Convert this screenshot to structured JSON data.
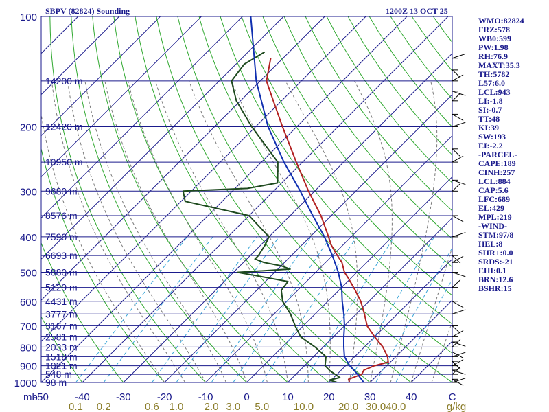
{
  "header": {
    "station": "SBPV (82824) Sounding",
    "time": "1200Z 13 OCT 25"
  },
  "indices": [
    "WMO:82824",
    "FRZ:578",
    "WB0:599",
    "PW:1.98",
    "RH:76.9",
    "MAXT:35.3",
    "TH:5782",
    "L57:6.0",
    "LCL:943",
    "LI:-1.8",
    "SI:-0.7",
    "TT:48",
    "KI:39",
    "SW:193",
    "EI:-2.2",
    "-PARCEL-",
    "CAPE:189",
    "CINH:257",
    "LCL:884",
    "CAP:5.6",
    "LFC:689",
    "EL:429",
    "MPL:219",
    "-WIND-",
    "STM:97/8",
    "HEL:8",
    "SHR+:0.0",
    "SRDS:-21",
    "EHI:0.1",
    "BRN:12.6",
    "BSHR:15"
  ],
  "colors": {
    "isobar": "#1a1a8c",
    "isotherm": "#1a1a8c",
    "dry_adiabat": "#2fa82f",
    "moist_adiabat": "#7a7a7a",
    "mixing_ratio": "#3aa6d8",
    "temperature": "#b22222",
    "dewpoint": "#1e4a1e",
    "parcel": "#1030b0",
    "labels": "#1a1a8c",
    "mixing_labels": "#8b7d2a"
  },
  "chart_data": {
    "type": "line",
    "title": "SBPV (82824) Sounding",
    "xlabel": "",
    "ylabel": "mb",
    "x_units": "C",
    "y_scale": "log",
    "ylim": [
      1000,
      100
    ],
    "xlim": [
      -50,
      50
    ],
    "pressure_ticks": [
      100,
      200,
      300,
      400,
      500,
      600,
      700,
      800,
      900,
      1000
    ],
    "temperature_ticks": [
      -50,
      -40,
      -30,
      -20,
      -10,
      0,
      10,
      20,
      30,
      40,
      50
    ],
    "temperature_tick_labels": [
      "-50",
      "-40",
      "-30",
      "-20",
      "-10",
      "0",
      "10",
      "20",
      "30",
      "40",
      "C"
    ],
    "mixing_ratio_labels": [
      "0.1",
      "0.2",
      "0.6",
      "1.0",
      "2.0",
      "3.0",
      "5.0",
      "10.0",
      "20.0",
      "30.0",
      "40.0",
      "g/kg"
    ],
    "mixing_ratio_values": [
      0.1,
      0.2,
      0.6,
      1.0,
      2.0,
      3.0,
      5.0,
      10.0,
      20.0,
      30.0,
      40.0
    ],
    "height_labels": [
      {
        "p": 150,
        "text": "14200 m"
      },
      {
        "p": 200,
        "text": "12420 m"
      },
      {
        "p": 250,
        "text": "10950 m"
      },
      {
        "p": 300,
        "text": "9680 m"
      },
      {
        "p": 350,
        "text": "8576 m"
      },
      {
        "p": 400,
        "text": "7590 m"
      },
      {
        "p": 450,
        "text": "6693 m"
      },
      {
        "p": 500,
        "text": "5880 m"
      },
      {
        "p": 550,
        "text": "5129 m"
      },
      {
        "p": 600,
        "text": "4431 m"
      },
      {
        "p": 650,
        "text": "3777 m"
      },
      {
        "p": 700,
        "text": "3167 m"
      },
      {
        "p": 750,
        "text": "2581 m"
      },
      {
        "p": 800,
        "text": "2033 m"
      },
      {
        "p": 850,
        "text": "1518 m"
      },
      {
        "p": 900,
        "text": "1021 m"
      },
      {
        "p": 950,
        "text": "548 m"
      },
      {
        "p": 1000,
        "text": "98 m"
      }
    ],
    "series": [
      {
        "key": "temperature",
        "points": [
          {
            "p": 1000,
            "t": 25.0
          },
          {
            "p": 980,
            "t": 24.0
          },
          {
            "p": 950,
            "t": 26.0
          },
          {
            "p": 925,
            "t": 25.5
          },
          {
            "p": 900,
            "t": 27.0
          },
          {
            "p": 880,
            "t": 29.5
          },
          {
            "p": 850,
            "t": 28.0
          },
          {
            "p": 800,
            "t": 24.5
          },
          {
            "p": 750,
            "t": 20.0
          },
          {
            "p": 700,
            "t": 15.5
          },
          {
            "p": 650,
            "t": 12.0
          },
          {
            "p": 600,
            "t": 8.0
          },
          {
            "p": 560,
            "t": 4.0
          },
          {
            "p": 520,
            "t": -0.5
          },
          {
            "p": 500,
            "t": -3.0
          },
          {
            "p": 470,
            "t": -6.0
          },
          {
            "p": 445,
            "t": -9.5
          },
          {
            "p": 420,
            "t": -13.0
          },
          {
            "p": 400,
            "t": -15.5
          },
          {
            "p": 350,
            "t": -22.5
          },
          {
            "p": 300,
            "t": -31.5
          },
          {
            "p": 250,
            "t": -41.5
          },
          {
            "p": 200,
            "t": -53.5
          },
          {
            "p": 170,
            "t": -62.0
          },
          {
            "p": 150,
            "t": -68.5
          },
          {
            "p": 130,
            "t": -73.0
          }
        ]
      },
      {
        "key": "dewpoint",
        "points": [
          {
            "p": 1000,
            "t": 22.0
          },
          {
            "p": 985,
            "t": 19.5
          },
          {
            "p": 970,
            "t": 21.5
          },
          {
            "p": 950,
            "t": 19.5
          },
          {
            "p": 930,
            "t": 17.5
          },
          {
            "p": 900,
            "t": 15.0
          },
          {
            "p": 850,
            "t": 13.0
          },
          {
            "p": 800,
            "t": 8.0
          },
          {
            "p": 750,
            "t": 2.0
          },
          {
            "p": 700,
            "t": -2.0
          },
          {
            "p": 650,
            "t": -6.0
          },
          {
            "p": 600,
            "t": -11.0
          },
          {
            "p": 560,
            "t": -14.0
          },
          {
            "p": 530,
            "t": -14.5
          },
          {
            "p": 510,
            "t": -24.0
          },
          {
            "p": 500,
            "t": -29.0
          },
          {
            "p": 490,
            "t": -17.0
          },
          {
            "p": 480,
            "t": -20.0
          },
          {
            "p": 470,
            "t": -25.0
          },
          {
            "p": 460,
            "t": -28.0
          },
          {
            "p": 450,
            "t": -28.0
          },
          {
            "p": 420,
            "t": -29.0
          },
          {
            "p": 400,
            "t": -30.0
          },
          {
            "p": 350,
            "t": -40.0
          },
          {
            "p": 320,
            "t": -59.0
          },
          {
            "p": 300,
            "t": -62.0
          },
          {
            "p": 295,
            "t": -47.0
          },
          {
            "p": 285,
            "t": -41.0
          },
          {
            "p": 250,
            "t": -46.0
          },
          {
            "p": 200,
            "t": -61.0
          },
          {
            "p": 170,
            "t": -71.0
          },
          {
            "p": 150,
            "t": -77.0
          },
          {
            "p": 135,
            "t": -78.0
          },
          {
            "p": 130,
            "t": -77.0
          },
          {
            "p": 125,
            "t": -76.0
          }
        ]
      },
      {
        "key": "parcel",
        "points": [
          {
            "p": 1000,
            "t": 28.5
          },
          {
            "p": 950,
            "t": 25.0
          },
          {
            "p": 900,
            "t": 21.0
          },
          {
            "p": 850,
            "t": 17.5
          },
          {
            "p": 800,
            "t": 15.0
          },
          {
            "p": 750,
            "t": 12.5
          },
          {
            "p": 700,
            "t": 10.0
          },
          {
            "p": 650,
            "t": 7.0
          },
          {
            "p": 600,
            "t": 3.5
          },
          {
            "p": 550,
            "t": 0.0
          },
          {
            "p": 500,
            "t": -4.5
          },
          {
            "p": 450,
            "t": -10.0
          },
          {
            "p": 400,
            "t": -16.5
          },
          {
            "p": 350,
            "t": -24.5
          },
          {
            "p": 300,
            "t": -33.5
          },
          {
            "p": 250,
            "t": -44.5
          },
          {
            "p": 200,
            "t": -57.0
          },
          {
            "p": 150,
            "t": -71.0
          },
          {
            "p": 100,
            "t": -88.0
          }
        ]
      }
    ],
    "wind_levels_mb": [
      1000,
      980,
      950,
      925,
      900,
      875,
      850,
      825,
      800,
      775,
      750,
      700,
      650,
      600,
      550,
      500,
      470,
      450,
      400,
      350,
      300,
      280,
      250,
      230,
      200,
      185,
      170,
      160,
      150,
      140,
      130
    ]
  }
}
